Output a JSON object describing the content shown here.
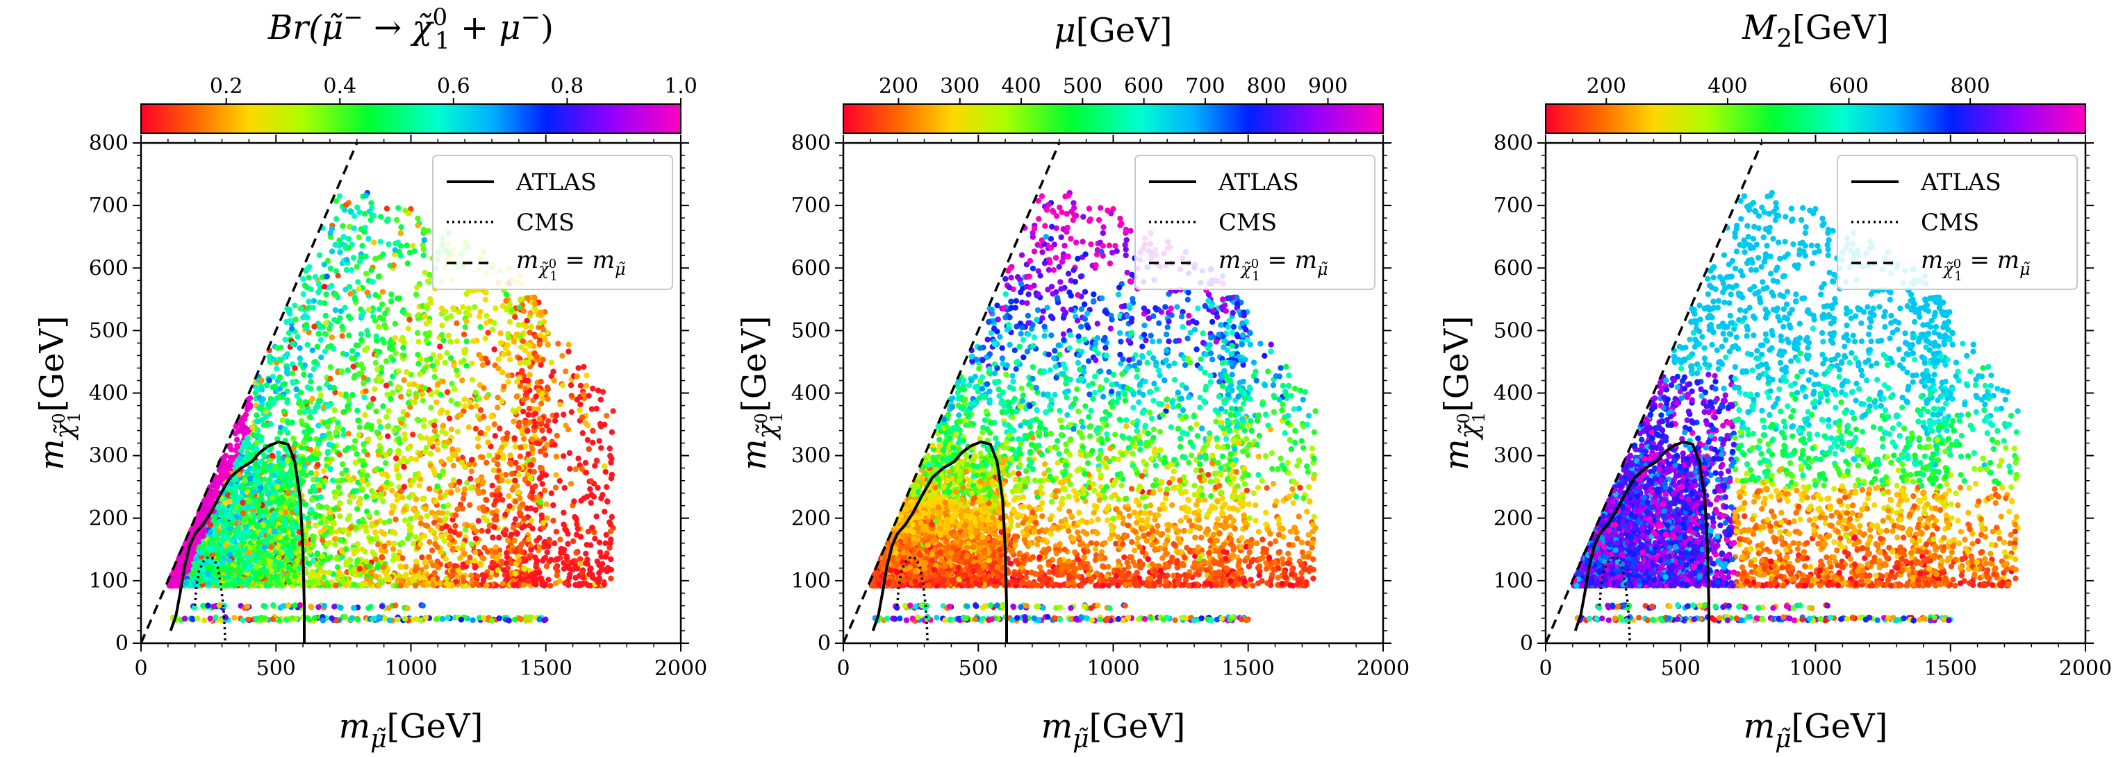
{
  "figure": {
    "panels_count": 3
  },
  "legend": {
    "atlas_label": "ATLAS",
    "cms_label": "CMS",
    "diag_label": "m χ̃10 = m μ̃",
    "diag_main": "m",
    "diag_sub1": "χ̃",
    "diag_sub1_sub": "1",
    "diag_sub1_sup": "0",
    "diag_eq": "= m",
    "diag_sub2": "μ̃"
  },
  "axes": {
    "x_label_main": "m",
    "x_label_sub": "μ̃",
    "x_label_unit": "[GeV]",
    "y_label_main": "m",
    "y_label_sub": "χ̃",
    "y_label_subsub": "1",
    "y_label_subsup": "0",
    "y_label_unit": "[GeV]",
    "x_ticks": [
      "0",
      "500",
      "1000",
      "1500",
      "2000"
    ],
    "y_ticks": [
      "0",
      "100",
      "200",
      "300",
      "400",
      "500",
      "600",
      "700",
      "800"
    ]
  },
  "colorbars": [
    {
      "title": "Br(μ̃⁻ → χ̃₁⁰ + μ⁻)",
      "title_prefix": "Br(",
      "title_mu": "μ̃",
      "title_sup_minus": "−",
      "title_arrow": " → ",
      "title_chi": "χ̃",
      "title_chi_sub": "1",
      "title_chi_sup": "0",
      "title_plus": " + μ",
      "title_end": ")",
      "range": [
        0.05,
        1.0
      ],
      "ticks": [
        "0.2",
        "0.4",
        "0.6",
        "0.8",
        "1.0"
      ],
      "tick_values": [
        0.2,
        0.4,
        0.6,
        0.8,
        1.0
      ],
      "colormap": "gist_rainbow"
    },
    {
      "title": "μ[GeV]",
      "title_main": "μ",
      "title_unit": "[GeV]",
      "range": [
        110,
        990
      ],
      "ticks": [
        "200",
        "300",
        "400",
        "500",
        "600",
        "700",
        "800",
        "900"
      ],
      "tick_values": [
        200,
        300,
        400,
        500,
        600,
        700,
        800,
        900
      ],
      "colormap": "gist_rainbow"
    },
    {
      "title": "M2[GeV]",
      "title_main": "M",
      "title_sub": "2",
      "title_unit": "[GeV]",
      "range": [
        100,
        990
      ],
      "ticks": [
        "200",
        "400",
        "600",
        "800"
      ],
      "tick_values": [
        200,
        400,
        600,
        800
      ],
      "colormap": "gist_rainbow"
    }
  ],
  "chart_data": [
    {
      "type": "scatter",
      "title": "Br(μ̃⁻ → χ̃₁⁰ + μ⁻)",
      "xlabel": "m_μ̃ [GeV]",
      "ylabel": "m_χ̃₁⁰ [GeV]",
      "xlim": [
        0,
        2000
      ],
      "ylim": [
        0,
        800
      ],
      "color_variable": "Br(μ̃⁻ → χ̃₁⁰ + μ⁻)",
      "color_range": [
        0.05,
        1.0
      ],
      "description": "Points fill region 100 < m_μ̃ < 1750 GeV, 90 < m_χ̃ < 720 GeV below diagonal; Br ~0.5 (cyan-green) near ATLAS region, lower (red/yellow) at large m_μ̃; magenta (~1.0) strip near diagonal at low mass; horizontal bands at m_χ̃ ≈ 40 and 60 GeV."
    },
    {
      "type": "scatter",
      "title": "μ[GeV]",
      "xlabel": "m_μ̃ [GeV]",
      "ylabel": "m_χ̃₁⁰ [GeV]",
      "xlim": [
        0,
        2000
      ],
      "ylim": [
        0,
        800
      ],
      "color_variable": "μ [GeV]",
      "color_range": [
        110,
        990
      ],
      "description": "Same point set colored by μ; μ increases with m_χ̃₁⁰ (red/orange below ~250 GeV, green ~400, blue/violet above ~500)."
    },
    {
      "type": "scatter",
      "title": "M2[GeV]",
      "xlabel": "m_μ̃ [GeV]",
      "ylabel": "m_χ̃₁⁰ [GeV]",
      "xlim": [
        0,
        2000
      ],
      "ylim": [
        0,
        800
      ],
      "color_variable": "M2 [GeV]",
      "color_range": [
        100,
        990
      ],
      "description": "Same point set colored by M2; blue/violet for m_μ̃ < ~700 GeV, red/orange for m_μ̃ ~ 700-1300 GeV at low m_χ̃, yellow-green/cyan at higher m_χ̃."
    }
  ],
  "curves": {
    "diagonal": [
      [
        0,
        0
      ],
      [
        800,
        800
      ]
    ],
    "atlas": [
      [
        110,
        20
      ],
      [
        130,
        45
      ],
      [
        145,
        80
      ],
      [
        160,
        120
      ],
      [
        180,
        155
      ],
      [
        200,
        175
      ],
      [
        230,
        190
      ],
      [
        260,
        210
      ],
      [
        290,
        235
      ],
      [
        330,
        265
      ],
      [
        370,
        280
      ],
      [
        410,
        290
      ],
      [
        440,
        305
      ],
      [
        470,
        315
      ],
      [
        510,
        322
      ],
      [
        545,
        318
      ],
      [
        570,
        290
      ],
      [
        590,
        230
      ],
      [
        600,
        150
      ],
      [
        605,
        60
      ],
      [
        605,
        0
      ]
    ],
    "cms": [
      [
        200,
        60
      ],
      [
        205,
        90
      ],
      [
        215,
        115
      ],
      [
        230,
        130
      ],
      [
        250,
        138
      ],
      [
        270,
        135
      ],
      [
        285,
        120
      ],
      [
        295,
        95
      ],
      [
        305,
        60
      ],
      [
        310,
        25
      ],
      [
        312,
        0
      ]
    ]
  }
}
